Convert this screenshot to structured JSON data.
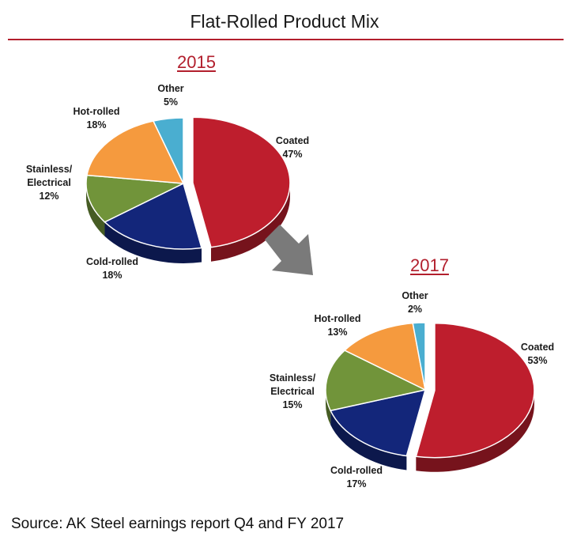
{
  "page": {
    "title": "Flat-Rolled Product Mix",
    "source": "Source: AK Steel earnings report Q4 and FY 2017"
  },
  "colors": {
    "Coated": "#be1e2d",
    "Cold-rolled": "#13267a",
    "Stainless/Electrical": "#71943a",
    "Hot-rolled": "#f59a3e",
    "Other": "#4aaed0",
    "accent": "#b21f2d",
    "arrow": "#7a7a7a"
  },
  "chart_data": [
    {
      "type": "pie",
      "title": "2015",
      "slices": [
        {
          "key": "Coated",
          "label_lines": [
            "Coated",
            "47%"
          ],
          "value": 47
        },
        {
          "key": "Cold-rolled",
          "label_lines": [
            "Cold-rolled",
            "18%"
          ],
          "value": 18
        },
        {
          "key": "Stainless/Electrical",
          "label_lines": [
            "Stainless/",
            "Electrical",
            "12%"
          ],
          "value": 12
        },
        {
          "key": "Hot-rolled",
          "label_lines": [
            "Hot-rolled",
            "18%"
          ],
          "value": 18
        },
        {
          "key": "Other",
          "label_lines": [
            "Other",
            "5%"
          ],
          "value": 5
        }
      ]
    },
    {
      "type": "pie",
      "title": "2017",
      "slices": [
        {
          "key": "Coated",
          "label_lines": [
            "Coated",
            "53%"
          ],
          "value": 53
        },
        {
          "key": "Cold-rolled",
          "label_lines": [
            "Cold-rolled",
            "17%"
          ],
          "value": 17
        },
        {
          "key": "Stainless/Electrical",
          "label_lines": [
            "Stainless/",
            "Electrical",
            "15%"
          ],
          "value": 15
        },
        {
          "key": "Hot-rolled",
          "label_lines": [
            "Hot-rolled",
            "13%"
          ],
          "value": 13
        },
        {
          "key": "Other",
          "label_lines": [
            "Other",
            "2%"
          ],
          "value": 2
        }
      ]
    }
  ]
}
